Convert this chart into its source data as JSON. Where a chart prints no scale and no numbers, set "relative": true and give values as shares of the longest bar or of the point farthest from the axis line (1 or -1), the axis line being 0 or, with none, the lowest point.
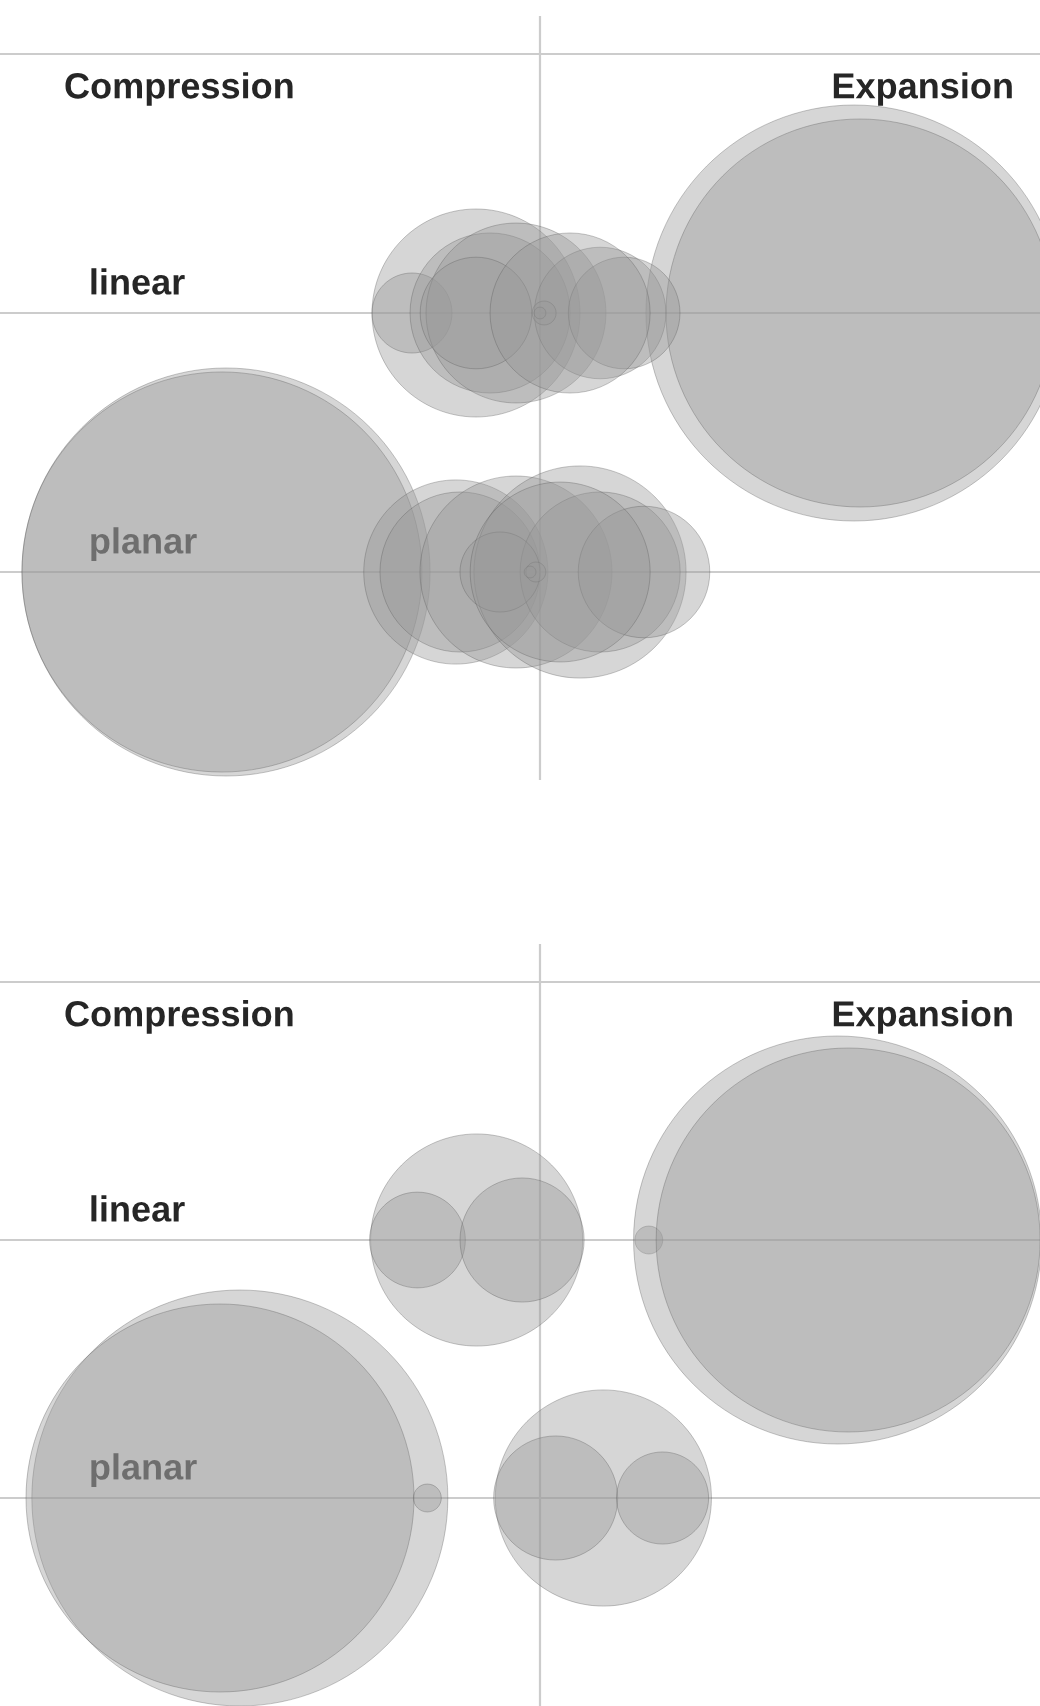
{
  "chart_data": [
    {
      "type": "bubble",
      "relative": true,
      "orientation": "horizontal",
      "categories": [
        null,
        "linear",
        "planar"
      ],
      "annotations": [
        "Compression",
        "Expansion"
      ],
      "grid": "y",
      "series": [
        {
          "color": "#999999",
          "values": [
            null,
            0.981,
            -0.981
          ],
          "sizes": [
            null,
            1.0,
            0.962
          ]
        },
        {
          "color": "#999999",
          "values": [
            null,
            1.0,
            -0.994
          ],
          "sizes": [
            null,
            0.87,
            0.925
          ]
        },
        {
          "color": "#999999",
          "values": [
            null,
            -0.2,
            -0.263
          ],
          "sizes": [
            null,
            0.25,
            0.196
          ]
        },
        {
          "color": "#999999",
          "values": [
            null,
            -0.4,
            -0.25
          ],
          "sizes": [
            null,
            0.037,
            0.148
          ]
        },
        {
          "color": "#999999",
          "values": [
            null,
            -0.156,
            -0.075
          ],
          "sizes": [
            null,
            0.148,
            0.213
          ]
        },
        {
          "color": "#999999",
          "values": [
            null,
            -0.075,
            0.125
          ],
          "sizes": [
            null,
            0.187,
            0.26
          ]
        },
        {
          "color": "#999999",
          "values": [
            null,
            -0.2,
            0.188
          ],
          "sizes": [
            null,
            0.072,
            0.148
          ]
        },
        {
          "color": "#999999",
          "values": [
            null,
            0.188,
            0.325
          ],
          "sizes": [
            null,
            0.1,
            0.1
          ]
        },
        {
          "color": "#999999",
          "values": [
            null,
            0.263,
            -0.125
          ],
          "sizes": [
            null,
            0.072,
            0.037
          ]
        },
        {
          "color": "#999999",
          "values": [
            null,
            0.013,
            -0.013
          ],
          "sizes": [
            null,
            0.0033,
            0.0023
          ]
        },
        {
          "color": "#999999",
          "values": [
            null,
            0.0,
            -0.031
          ],
          "sizes": [
            null,
            0.0008,
            0.0008
          ]
        },
        {
          "color": "#999999",
          "values": [
            null,
            0.094,
            0.063
          ],
          "sizes": [
            null,
            0.148,
            0.187
          ]
        }
      ]
    },
    {
      "type": "bubble",
      "relative": true,
      "orientation": "horizontal",
      "categories": [
        null,
        "linear",
        "planar"
      ],
      "annotations": [
        "Compression",
        "Expansion"
      ],
      "grid": "y",
      "series": [
        {
          "color": "#999999",
          "values": [
            null,
            -0.198,
            -0.938
          ],
          "sizes": [
            null,
            0.26,
            1.0
          ]
        },
        {
          "color": "#999999",
          "values": [
            null,
            -0.383,
            -1.0
          ],
          "sizes": [
            null,
            0.053,
            0.87
          ]
        },
        {
          "color": "#999999",
          "values": [
            null,
            -0.056,
            -0.352
          ],
          "sizes": [
            null,
            0.089,
            0.0045
          ]
        },
        {
          "color": "#999999",
          "values": [
            null,
            0.34,
            0.198
          ],
          "sizes": [
            null,
            0.0045,
            0.27
          ]
        },
        {
          "color": "#999999",
          "values": [
            null,
            0.93,
            0.049
          ],
          "sizes": [
            null,
            0.962,
            0.089
          ]
        },
        {
          "color": "#999999",
          "values": [
            null,
            0.963,
            0.383
          ],
          "sizes": [
            null,
            0.852,
            0.049
          ]
        }
      ]
    }
  ]
}
